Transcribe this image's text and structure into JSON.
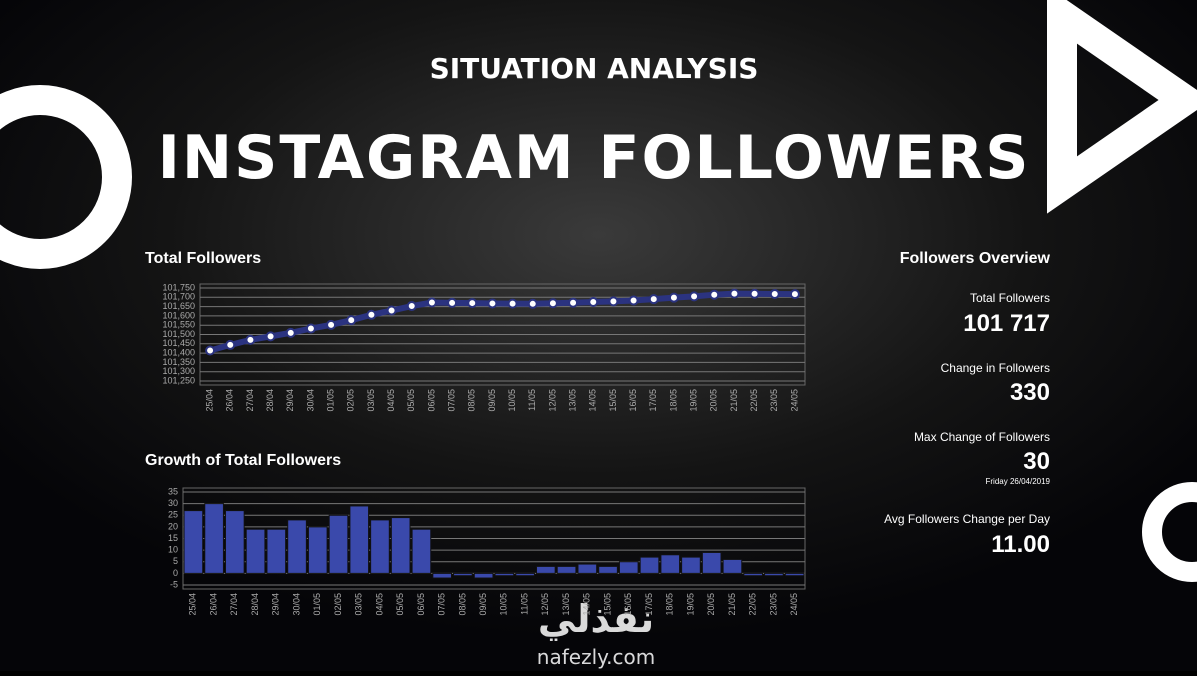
{
  "header": {
    "subtitle": "SITUATION ANALYSIS",
    "title": "INSTAGRAM FOLLOWERS"
  },
  "chart_data": [
    {
      "type": "line",
      "title": "Total Followers",
      "color": "#2b3380",
      "grid": true,
      "categories": [
        "25/04",
        "26/04",
        "27/04",
        "28/04",
        "29/04",
        "30/04",
        "01/05",
        "02/05",
        "03/05",
        "04/05",
        "05/05",
        "06/05",
        "07/05",
        "08/05",
        "09/05",
        "10/05",
        "11/05",
        "12/05",
        "13/05",
        "14/05",
        "15/05",
        "16/05",
        "17/05",
        "18/05",
        "19/05",
        "20/05",
        "21/05",
        "22/05",
        "23/05",
        "24/05"
      ],
      "values": [
        101414,
        101444,
        101471,
        101490,
        101509,
        101532,
        101552,
        101577,
        101606,
        101629,
        101653,
        101672,
        101670,
        101669,
        101667,
        101666,
        101665,
        101668,
        101671,
        101675,
        101678,
        101683,
        101690,
        101698,
        101705,
        101714,
        101720,
        101719,
        101718,
        101717
      ],
      "ylim": [
        101250,
        101750
      ],
      "yticks": [
        {
          "value": 101250,
          "label": "101,250"
        },
        {
          "value": 101300,
          "label": "101,300"
        },
        {
          "value": 101350,
          "label": "101,350"
        },
        {
          "value": 101400,
          "label": "101,400"
        },
        {
          "value": 101450,
          "label": "101,450"
        },
        {
          "value": 101500,
          "label": "101,500"
        },
        {
          "value": 101550,
          "label": "101,550"
        },
        {
          "value": 101600,
          "label": "101,600"
        },
        {
          "value": 101650,
          "label": "101,650"
        },
        {
          "value": 101700,
          "label": "101,700"
        },
        {
          "value": 101750,
          "label": "101,750"
        }
      ]
    },
    {
      "type": "bar",
      "title": "Growth of Total Followers",
      "color": "#3a49ab",
      "grid": true,
      "categories": [
        "25/04",
        "26/04",
        "27/04",
        "28/04",
        "29/04",
        "30/04",
        "01/05",
        "02/05",
        "03/05",
        "04/05",
        "05/05",
        "06/05",
        "07/05",
        "08/05",
        "09/05",
        "10/05",
        "11/05",
        "12/05",
        "13/05",
        "14/05",
        "15/05",
        "16/05",
        "17/05",
        "18/05",
        "19/05",
        "20/05",
        "21/05",
        "22/05",
        "23/05",
        "24/05"
      ],
      "values": [
        27,
        30,
        27,
        19,
        19,
        23,
        20,
        25,
        29,
        23,
        24,
        19,
        -2,
        -1,
        -2,
        -1,
        -1,
        3,
        3,
        4,
        3,
        5,
        7,
        8,
        7,
        9,
        6,
        -1,
        -1,
        -1
      ],
      "ylim": [
        -5,
        35
      ],
      "yticks": [
        -5,
        0,
        5,
        10,
        15,
        20,
        25,
        30,
        35
      ]
    }
  ],
  "overview": {
    "title": "Followers Overview",
    "items": [
      {
        "label": "Total Followers",
        "value": "101 717"
      },
      {
        "label": "Change in Followers",
        "value": "330"
      },
      {
        "label": "Max Change of Followers",
        "value": "30",
        "note": "Friday 26/04/2019"
      },
      {
        "label": "Avg Followers Change per Day",
        "value": "11.00"
      }
    ]
  },
  "watermark": {
    "arabic": "نفذلي",
    "url": "nafezly.com"
  }
}
